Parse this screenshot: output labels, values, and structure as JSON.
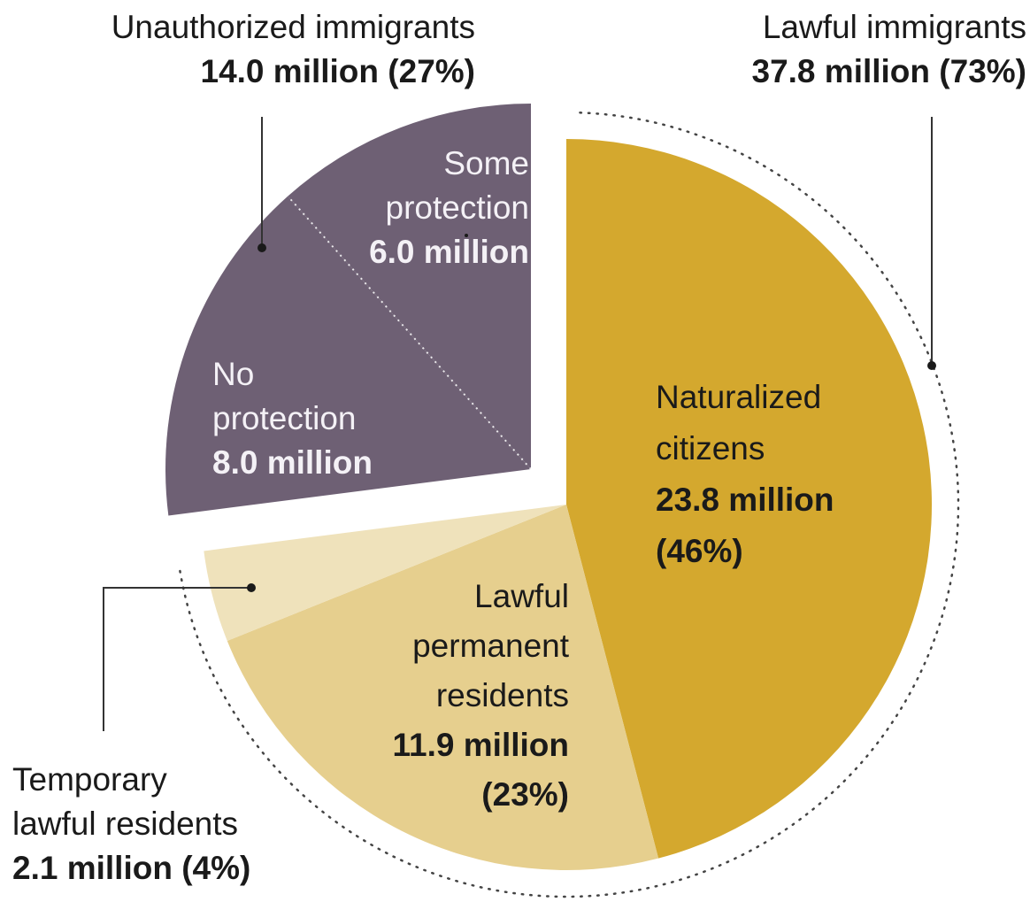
{
  "chart_data": {
    "type": "pie",
    "unit": "million",
    "slices": [
      {
        "key": "naturalized",
        "name_lines": [
          "Naturalized",
          "citizens"
        ],
        "value": 23.8,
        "value_text": "23.8 million",
        "pct_text": "(46%)",
        "color": "#d4a82e"
      },
      {
        "key": "lpr",
        "name_lines": [
          "Lawful",
          "permanent",
          "residents"
        ],
        "value": 11.9,
        "value_text": "11.9 million",
        "pct_text": "(23%)",
        "color": "#e6cf8e"
      },
      {
        "key": "temporary",
        "name_lines": [
          "Temporary",
          "lawful residents"
        ],
        "value": 2.1,
        "value_text": "2.1 million (4%)",
        "color": "#efe2bb"
      },
      {
        "key": "no_protection",
        "name_lines": [
          "No",
          "protection"
        ],
        "value": 8.0,
        "value_text": "8.0 million",
        "color": "#6e6074"
      },
      {
        "key": "some_protection",
        "name_lines": [
          "Some",
          "protection"
        ],
        "value": 6.0,
        "value_text": "6.0 million",
        "color": "#6e6074"
      }
    ],
    "groups": [
      {
        "key": "lawful",
        "title": "Lawful immigrants",
        "value": 37.8,
        "value_text": "37.8 million (73%)",
        "members": [
          "naturalized",
          "lpr",
          "temporary"
        ]
      },
      {
        "key": "unauthorized",
        "title": "Unauthorized immigrants",
        "value": 14.0,
        "value_text": "14.0 million (27%)",
        "members": [
          "no_protection",
          "some_protection"
        ],
        "exploded": true
      }
    ]
  }
}
